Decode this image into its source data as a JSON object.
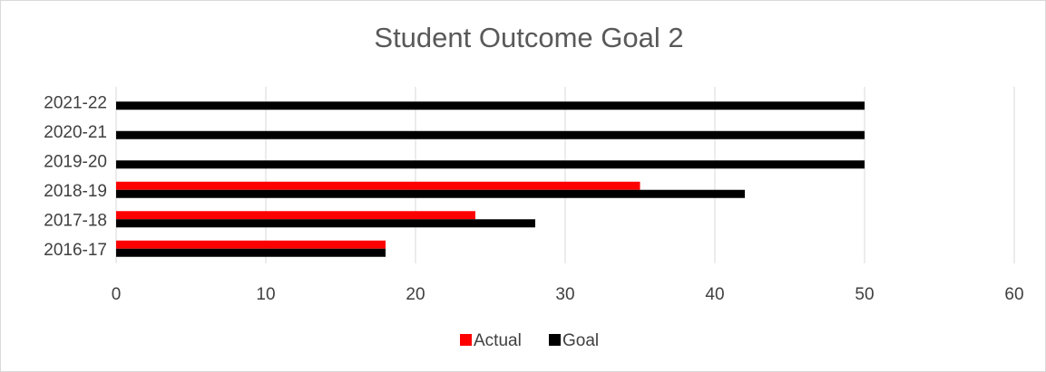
{
  "chart_data": {
    "type": "bar",
    "orientation": "horizontal",
    "title": "Student Outcome Goal 2",
    "categories": [
      "2016-17",
      "2017-18",
      "2018-19",
      "2019-20",
      "2020-21",
      "2021-22"
    ],
    "series": [
      {
        "name": "Actual",
        "color": "#ff0000",
        "values": [
          18,
          24,
          35,
          null,
          null,
          null
        ]
      },
      {
        "name": "Goal",
        "color": "#000000",
        "values": [
          18,
          28,
          42,
          50,
          50,
          50
        ]
      }
    ],
    "xlim": [
      0,
      60
    ],
    "xticks": [
      0,
      10,
      20,
      30,
      40,
      50,
      60
    ],
    "xlabel": "",
    "ylabel": "",
    "grid": "vertical",
    "legend_position": "bottom"
  },
  "colors": {
    "gridline": "#d9d9d9",
    "text": "#404040",
    "title": "#595959"
  }
}
